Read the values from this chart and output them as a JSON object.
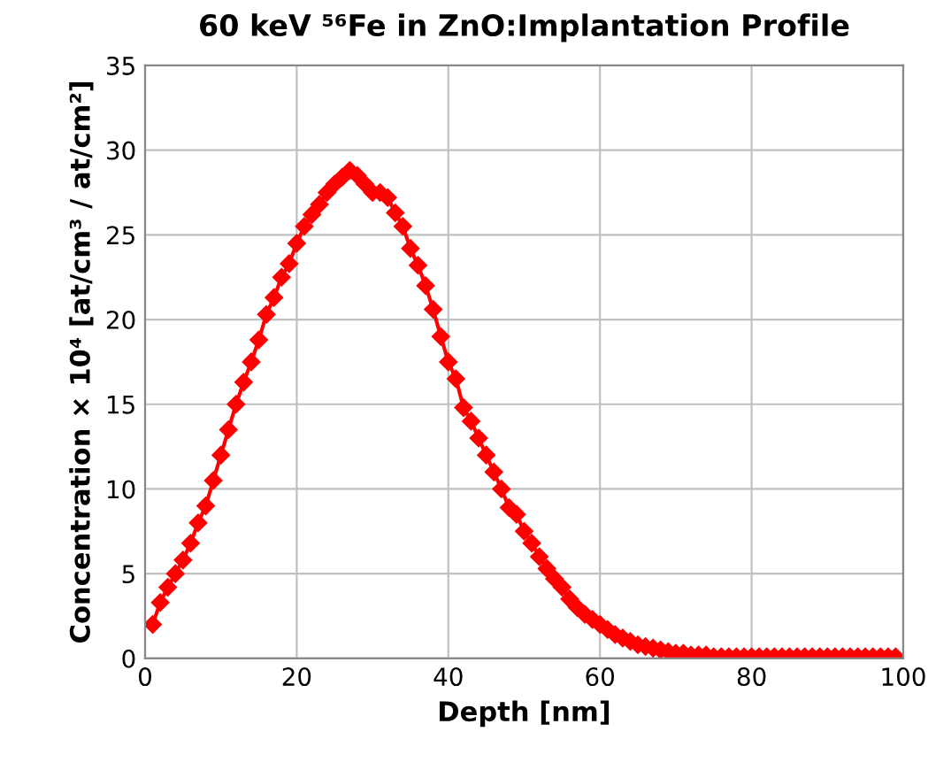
{
  "chart_data": {
    "type": "line",
    "title": "60 keV ⁵⁶Fe in ZnO:Implantation Profile",
    "xlabel": "Depth [nm]",
    "ylabel": "Concentration × 10⁴ [at/cm³ / at/cm²]",
    "x": [
      1,
      2,
      3,
      4,
      5,
      6,
      7,
      8,
      9,
      10,
      11,
      12,
      13,
      14,
      15,
      16,
      17,
      18,
      19,
      20,
      21,
      22,
      23,
      24,
      25,
      26,
      27,
      28,
      29,
      30,
      31,
      32,
      33,
      34,
      35,
      36,
      37,
      38,
      39,
      40,
      41,
      42,
      43,
      44,
      45,
      46,
      47,
      48,
      49,
      50,
      51,
      52,
      53,
      54,
      55,
      56,
      57,
      58,
      59,
      60,
      61,
      62,
      63,
      64,
      65,
      66,
      67,
      68,
      69,
      70,
      71,
      72,
      73,
      74,
      75,
      76,
      77,
      78,
      79,
      80,
      81,
      82,
      83,
      84,
      85,
      86,
      87,
      88,
      89,
      90,
      91,
      92,
      93,
      94,
      95,
      96,
      97,
      98,
      99
    ],
    "series": [
      {
        "color": "#ff0000",
        "values": [
          2.0,
          3.3,
          4.2,
          5.0,
          5.8,
          6.8,
          8.0,
          9.0,
          10.5,
          12.0,
          13.5,
          15.0,
          16.3,
          17.5,
          18.8,
          20.3,
          21.3,
          22.5,
          23.3,
          24.5,
          25.5,
          26.2,
          26.8,
          27.5,
          28.0,
          28.4,
          28.8,
          28.5,
          28.0,
          27.5,
          27.5,
          27.2,
          26.3,
          25.5,
          24.2,
          23.2,
          22.0,
          20.6,
          19.0,
          17.5,
          16.5,
          14.8,
          14.0,
          13.0,
          12.0,
          11.0,
          10.0,
          8.9,
          8.5,
          7.5,
          6.8,
          6.0,
          5.3,
          4.7,
          4.2,
          3.5,
          3.0,
          2.6,
          2.3,
          2.0,
          1.7,
          1.4,
          1.2,
          1.0,
          0.8,
          0.7,
          0.6,
          0.5,
          0.4,
          0.3,
          0.3,
          0.2,
          0.2,
          0.2,
          0.1,
          0.1,
          0.1,
          0.1,
          0.1,
          0.1,
          0.1,
          0.1,
          0.1,
          0.1,
          0.1,
          0.1,
          0.1,
          0.1,
          0.1,
          0.1,
          0.1,
          0.1,
          0.1,
          0.1,
          0.1,
          0.1,
          0.1,
          0.1,
          0.1
        ]
      }
    ],
    "xlim": [
      0,
      100
    ],
    "xticks": [
      0,
      20,
      40,
      60,
      80,
      100
    ],
    "ylim": [
      0,
      35
    ],
    "yticks": [
      0,
      5,
      10,
      15,
      20,
      25,
      30,
      35
    ],
    "grid": true,
    "marker": "diamond",
    "line_style": "solid",
    "legend": false
  }
}
